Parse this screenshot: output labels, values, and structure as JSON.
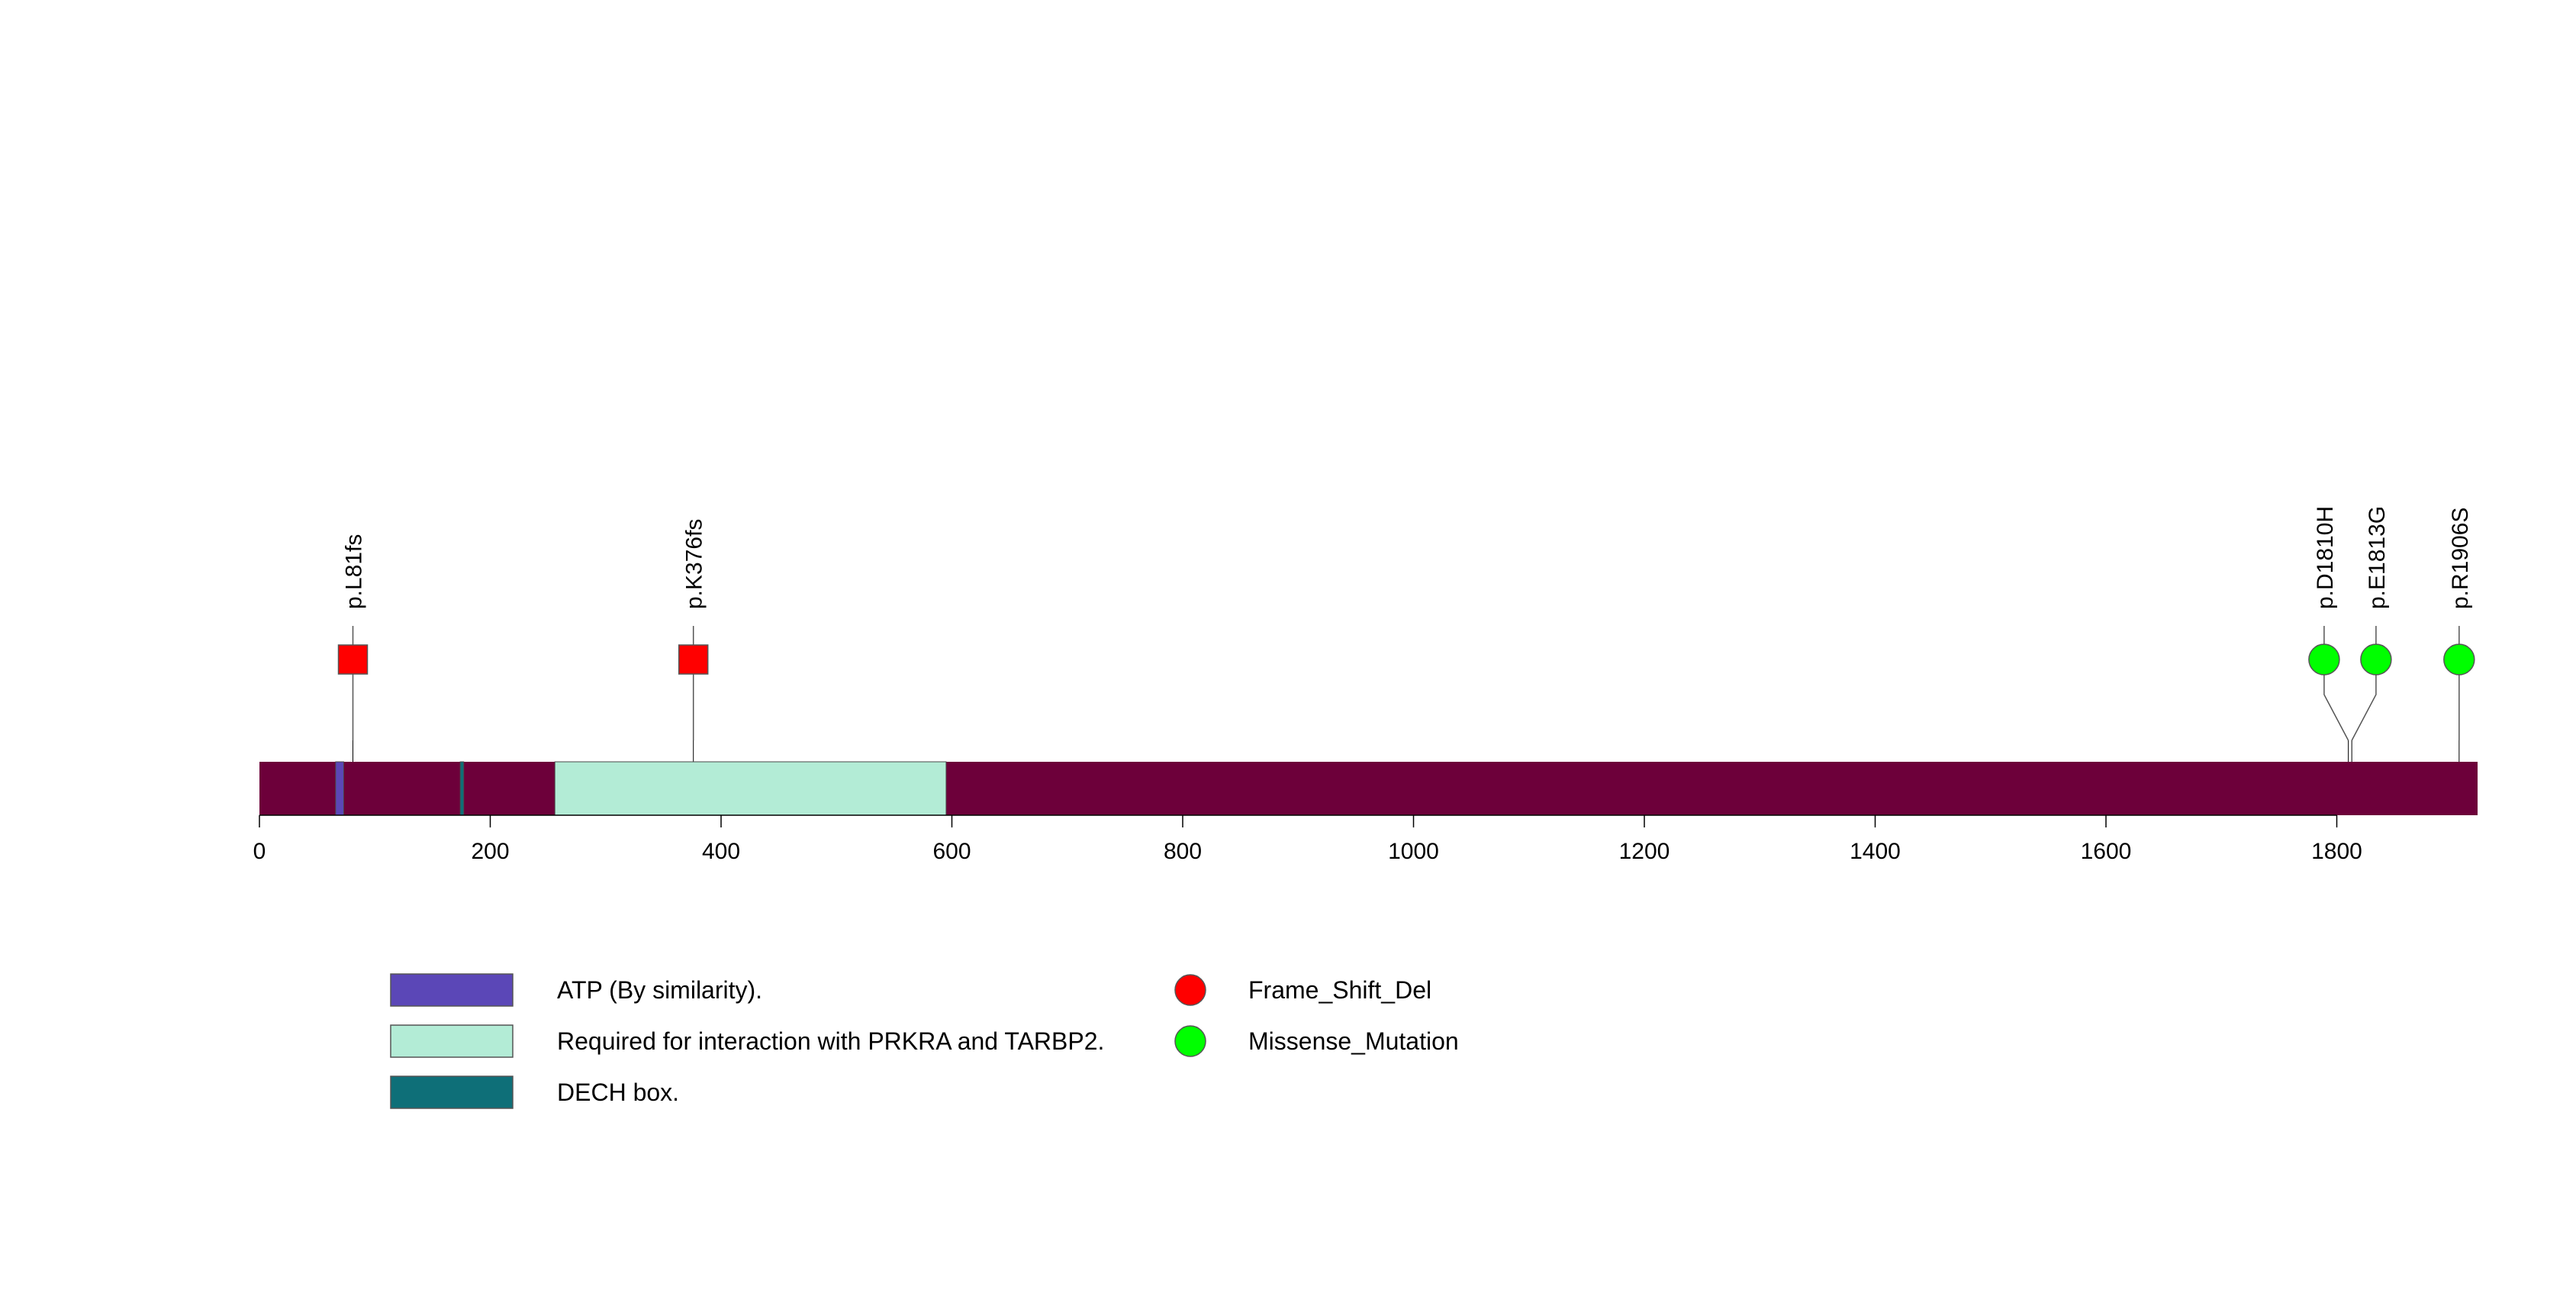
{
  "protein": {
    "length": 1922,
    "color": "#6d003a"
  },
  "axis": {
    "range": [
      0,
      1922
    ],
    "ticks": [
      0,
      200,
      400,
      600,
      800,
      1000,
      1200,
      1400,
      1600,
      1800
    ]
  },
  "domains": [
    {
      "name": "ATP (By similarity).",
      "start": 66,
      "end": 73,
      "color": "#5b47b7"
    },
    {
      "name": "Required for interaction with PRKRA and TARBP2.",
      "start": 256,
      "end": 595,
      "color": "#b3ecd6"
    },
    {
      "name": "DECH box.",
      "start": 174,
      "end": 177,
      "color": "#0e6f78"
    }
  ],
  "mutations": [
    {
      "label": "p.L81fs",
      "position": 81,
      "type": "Frame_Shift_Del",
      "shape": "square",
      "color": "#ff0000"
    },
    {
      "label": "p.K376fs",
      "position": 376,
      "type": "Frame_Shift_Del",
      "shape": "square",
      "color": "#ff0000"
    },
    {
      "label": "p.D1810H",
      "position": 1810,
      "type": "Missense_Mutation",
      "shape": "circle",
      "color": "#00ff00"
    },
    {
      "label": "p.E1813G",
      "position": 1813,
      "type": "Missense_Mutation",
      "shape": "circle",
      "color": "#00ff00"
    },
    {
      "label": "p.R1906S",
      "position": 1906,
      "type": "Missense_Mutation",
      "shape": "circle",
      "color": "#00ff00"
    }
  ],
  "legend": {
    "domains": [
      {
        "label": "ATP (By similarity).",
        "color": "#5b47b7"
      },
      {
        "label": "Required for interaction with PRKRA and TARBP2.",
        "color": "#b3ecd6"
      },
      {
        "label": "DECH box.",
        "color": "#0e6f78"
      }
    ],
    "mutation_types": [
      {
        "label": "Frame_Shift_Del",
        "color": "#ff0000"
      },
      {
        "label": "Missense_Mutation",
        "color": "#00ff00"
      }
    ]
  }
}
